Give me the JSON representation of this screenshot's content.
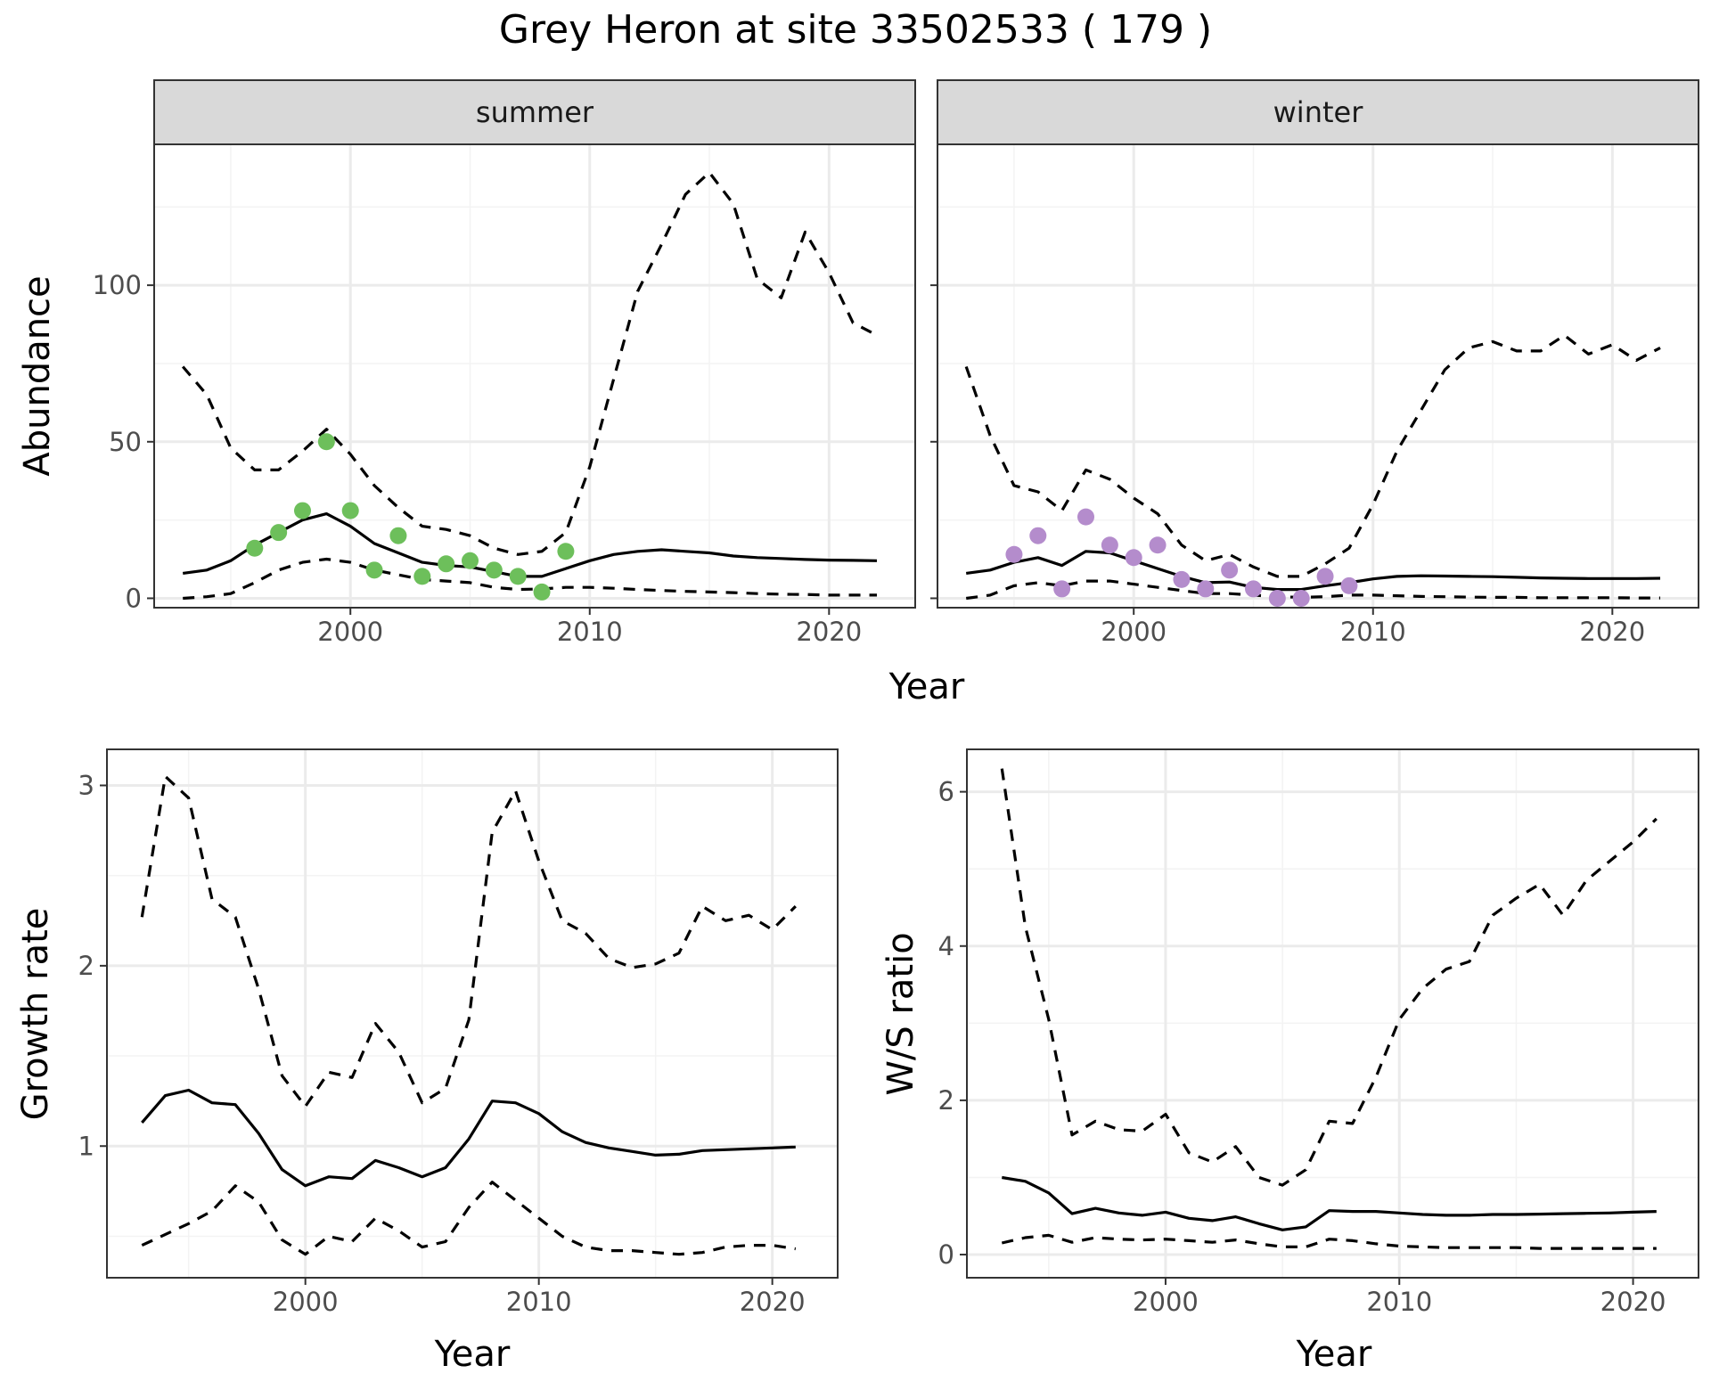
{
  "title": "Grey Heron at site 33502533 ( 179 )",
  "colors": {
    "summer_points": "#6dbf5b",
    "winter_points": "#b48ccc",
    "line": "#000000",
    "grid_major": "#ebebeb",
    "grid_minor": "#f3f3f3",
    "strip_bg": "#d9d9d9",
    "panel_border": "#333333"
  },
  "chart_data": [
    {
      "type": "line",
      "facet": "summer",
      "xlabel": "Year",
      "ylabel": "Abundance",
      "xlim": [
        1991.8,
        2023.6
      ],
      "ylim": [
        -3,
        145
      ],
      "x_ticks": [
        2000,
        2010,
        2020
      ],
      "y_ticks": [
        0,
        50,
        100
      ],
      "grid": true,
      "series": [
        {
          "role": "estimate",
          "style": "solid",
          "x": [
            1993,
            1994,
            1995,
            1996,
            1997,
            1998,
            1999,
            2000,
            2001,
            2002,
            2003,
            2004,
            2005,
            2006,
            2007,
            2008,
            2009,
            2010,
            2011,
            2012,
            2013,
            2014,
            2015,
            2016,
            2017,
            2018,
            2019,
            2020,
            2021,
            2022
          ],
          "y": [
            8,
            9,
            12,
            17,
            21,
            25,
            27,
            23,
            17.5,
            14.5,
            11.5,
            10.5,
            10,
            8.5,
            7,
            7,
            9.5,
            12,
            14,
            15,
            15.5,
            15,
            14.5,
            13.5,
            13,
            12.7,
            12.4,
            12.2,
            12.1,
            12
          ]
        },
        {
          "role": "upper",
          "style": "dashed",
          "x": [
            1993,
            1994,
            1995,
            1996,
            1997,
            1998,
            1999,
            2000,
            2001,
            2002,
            2003,
            2004,
            2005,
            2006,
            2007,
            2008,
            2009,
            2010,
            2011,
            2012,
            2013,
            2014,
            2015,
            2016,
            2017,
            2018,
            2019,
            2020,
            2021,
            2022
          ],
          "y": [
            74,
            65,
            48,
            41,
            41,
            47,
            54,
            46,
            36,
            29,
            23,
            22,
            20,
            16,
            14,
            15,
            21,
            42,
            70,
            98,
            113,
            129,
            136,
            126,
            102,
            96,
            117,
            104,
            88,
            84
          ]
        },
        {
          "role": "lower",
          "style": "dashed",
          "x": [
            1993,
            1994,
            1995,
            1996,
            1997,
            1998,
            1999,
            2000,
            2001,
            2002,
            2003,
            2004,
            2005,
            2006,
            2007,
            2008,
            2009,
            2010,
            2011,
            2012,
            2013,
            2014,
            2015,
            2016,
            2017,
            2018,
            2019,
            2020,
            2021,
            2022
          ],
          "y": [
            0,
            0.5,
            1.5,
            5,
            9,
            11.5,
            12.5,
            11.5,
            9,
            7.5,
            6,
            5.5,
            5,
            3.5,
            2.8,
            3,
            3.5,
            3.5,
            3.2,
            2.8,
            2.5,
            2.2,
            2,
            1.8,
            1.5,
            1.3,
            1.2,
            1,
            1,
            1
          ]
        },
        {
          "role": "observed",
          "style": "points",
          "x": [
            1996,
            1997,
            1998,
            1999,
            2000,
            2001,
            2002,
            2003,
            2004,
            2005,
            2006,
            2007,
            2008,
            2009
          ],
          "y": [
            16,
            21,
            28,
            50,
            28,
            9,
            20,
            7,
            11,
            12,
            9,
            7,
            2,
            15
          ]
        }
      ]
    },
    {
      "type": "line",
      "facet": "winter",
      "xlabel": "Year",
      "ylabel": "Abundance",
      "xlim": [
        1991.8,
        2023.6
      ],
      "ylim": [
        -3,
        145
      ],
      "x_ticks": [
        2000,
        2010,
        2020
      ],
      "y_ticks": [
        0,
        50,
        100
      ],
      "grid": true,
      "series": [
        {
          "role": "estimate",
          "style": "solid",
          "x": [
            1993,
            1994,
            1995,
            1996,
            1997,
            1998,
            1999,
            2000,
            2001,
            2002,
            2003,
            2004,
            2005,
            2006,
            2007,
            2008,
            2009,
            2010,
            2011,
            2012,
            2013,
            2014,
            2015,
            2016,
            2017,
            2018,
            2019,
            2020,
            2021,
            2022
          ],
          "y": [
            8,
            9,
            11.5,
            13,
            10.5,
            15,
            14.5,
            12,
            9.5,
            7,
            5,
            5.2,
            3.5,
            2.8,
            2.8,
            4,
            5,
            6.2,
            7,
            7.2,
            7.1,
            7,
            6.9,
            6.7,
            6.5,
            6.4,
            6.3,
            6.3,
            6.3,
            6.4
          ]
        },
        {
          "role": "upper",
          "style": "dashed",
          "x": [
            1993,
            1994,
            1995,
            1996,
            1997,
            1998,
            1999,
            2000,
            2001,
            2002,
            2003,
            2004,
            2005,
            2006,
            2007,
            2008,
            2009,
            2010,
            2011,
            2012,
            2013,
            2014,
            2015,
            2016,
            2017,
            2018,
            2019,
            2020,
            2021,
            2022
          ],
          "y": [
            74,
            52,
            36,
            34,
            28,
            41,
            38,
            32,
            27,
            17,
            12,
            14,
            10,
            7,
            7,
            11,
            16,
            30,
            47,
            60,
            73,
            80,
            82,
            79,
            79,
            84,
            78,
            81,
            76,
            80
          ]
        },
        {
          "role": "lower",
          "style": "dashed",
          "x": [
            1993,
            1994,
            1995,
            1996,
            1997,
            1998,
            1999,
            2000,
            2001,
            2002,
            2003,
            2004,
            2005,
            2006,
            2007,
            2008,
            2009,
            2010,
            2011,
            2012,
            2013,
            2014,
            2015,
            2016,
            2017,
            2018,
            2019,
            2020,
            2021,
            2022
          ],
          "y": [
            0,
            1,
            4,
            5,
            4,
            5.5,
            5.5,
            4.5,
            3.5,
            2.5,
            1.5,
            1.5,
            1,
            0.5,
            0.3,
            0.5,
            1,
            1,
            0.8,
            0.6,
            0.5,
            0.4,
            0.3,
            0.3,
            0.2,
            0.2,
            0.2,
            0.2,
            0.1,
            0.1
          ]
        },
        {
          "role": "observed",
          "style": "points",
          "x": [
            1995,
            1996,
            1997,
            1998,
            1999,
            2000,
            2001,
            2002,
            2003,
            2004,
            2005,
            2006,
            2007,
            2008,
            2009
          ],
          "y": [
            14,
            20,
            3,
            26,
            17,
            13,
            17,
            6,
            3,
            9,
            3,
            0,
            0,
            7,
            4
          ]
        }
      ]
    },
    {
      "type": "line",
      "xlabel": "Year",
      "ylabel": "Growth rate",
      "xlim": [
        1991.5,
        2022.8
      ],
      "ylim": [
        0.27,
        3.2
      ],
      "x_ticks": [
        2000,
        2010,
        2020
      ],
      "y_ticks": [
        1,
        2,
        3
      ],
      "grid": true,
      "series": [
        {
          "role": "estimate",
          "style": "solid",
          "x": [
            1993,
            1994,
            1995,
            1996,
            1997,
            1998,
            1999,
            2000,
            2001,
            2002,
            2003,
            2004,
            2005,
            2006,
            2007,
            2008,
            2009,
            2010,
            2011,
            2012,
            2013,
            2014,
            2015,
            2016,
            2017,
            2018,
            2019,
            2020,
            2021
          ],
          "y": [
            1.13,
            1.28,
            1.31,
            1.24,
            1.23,
            1.07,
            0.87,
            0.78,
            0.83,
            0.82,
            0.92,
            0.88,
            0.83,
            0.88,
            1.04,
            1.25,
            1.24,
            1.18,
            1.08,
            1.02,
            0.99,
            0.97,
            0.95,
            0.955,
            0.975,
            0.98,
            0.985,
            0.99,
            0.995
          ]
        },
        {
          "role": "upper",
          "style": "dashed",
          "x": [
            1993,
            1994,
            1995,
            1996,
            1997,
            1998,
            1999,
            2000,
            2001,
            2002,
            2003,
            2004,
            2005,
            2006,
            2007,
            2008,
            2009,
            2010,
            2011,
            2012,
            2013,
            2014,
            2015,
            2016,
            2017,
            2018,
            2019,
            2020,
            2021
          ],
          "y": [
            2.27,
            3.05,
            2.93,
            2.37,
            2.27,
            1.87,
            1.39,
            1.22,
            1.41,
            1.38,
            1.68,
            1.52,
            1.24,
            1.32,
            1.7,
            2.74,
            2.97,
            2.58,
            2.25,
            2.18,
            2.04,
            1.99,
            2.01,
            2.07,
            2.33,
            2.25,
            2.28,
            2.2,
            2.33
          ]
        },
        {
          "role": "lower",
          "style": "dashed",
          "x": [
            1993,
            1994,
            1995,
            1996,
            1997,
            1998,
            1999,
            2000,
            2001,
            2002,
            2003,
            2004,
            2005,
            2006,
            2007,
            2008,
            2009,
            2010,
            2011,
            2012,
            2013,
            2014,
            2015,
            2016,
            2017,
            2018,
            2019,
            2020,
            2021
          ],
          "y": [
            0.45,
            0.51,
            0.57,
            0.64,
            0.78,
            0.69,
            0.48,
            0.4,
            0.5,
            0.47,
            0.6,
            0.53,
            0.44,
            0.47,
            0.66,
            0.8,
            0.7,
            0.6,
            0.5,
            0.44,
            0.42,
            0.42,
            0.41,
            0.4,
            0.41,
            0.44,
            0.45,
            0.45,
            0.43
          ]
        }
      ]
    },
    {
      "type": "line",
      "xlabel": "Year",
      "ylabel": "W/S ratio",
      "xlim": [
        1991.5,
        2022.8
      ],
      "ylim": [
        -0.3,
        6.55
      ],
      "x_ticks": [
        2000,
        2010,
        2020
      ],
      "y_ticks": [
        0,
        2,
        4,
        6
      ],
      "grid": true,
      "series": [
        {
          "role": "estimate",
          "style": "solid",
          "x": [
            1993,
            1994,
            1995,
            1996,
            1997,
            1998,
            1999,
            2000,
            2001,
            2002,
            2003,
            2004,
            2005,
            2006,
            2007,
            2008,
            2009,
            2010,
            2011,
            2012,
            2013,
            2014,
            2015,
            2016,
            2017,
            2018,
            2019,
            2020,
            2021
          ],
          "y": [
            1.0,
            0.95,
            0.8,
            0.53,
            0.6,
            0.54,
            0.51,
            0.55,
            0.47,
            0.44,
            0.49,
            0.4,
            0.32,
            0.36,
            0.57,
            0.56,
            0.56,
            0.54,
            0.52,
            0.51,
            0.51,
            0.52,
            0.52,
            0.525,
            0.53,
            0.535,
            0.54,
            0.55,
            0.56
          ]
        },
        {
          "role": "upper",
          "style": "dashed",
          "x": [
            1993,
            1994,
            1995,
            1996,
            1997,
            1998,
            1999,
            2000,
            2001,
            2002,
            2003,
            2004,
            2005,
            2006,
            2007,
            2008,
            2009,
            2010,
            2011,
            2012,
            2013,
            2014,
            2015,
            2016,
            2017,
            2018,
            2019,
            2020,
            2021
          ],
          "y": [
            6.3,
            4.25,
            3.05,
            1.55,
            1.73,
            1.62,
            1.6,
            1.82,
            1.32,
            1.2,
            1.4,
            1.0,
            0.9,
            1.1,
            1.73,
            1.7,
            2.3,
            3.05,
            3.45,
            3.7,
            3.8,
            4.4,
            4.62,
            4.8,
            4.4,
            4.85,
            5.1,
            5.35,
            5.65
          ]
        },
        {
          "role": "lower",
          "style": "dashed",
          "x": [
            1993,
            1994,
            1995,
            1996,
            1997,
            1998,
            1999,
            2000,
            2001,
            2002,
            2003,
            2004,
            2005,
            2006,
            2007,
            2008,
            2009,
            2010,
            2011,
            2012,
            2013,
            2014,
            2015,
            2016,
            2017,
            2018,
            2019,
            2020,
            2021
          ],
          "y": [
            0.15,
            0.22,
            0.25,
            0.16,
            0.22,
            0.2,
            0.19,
            0.2,
            0.18,
            0.16,
            0.19,
            0.14,
            0.1,
            0.1,
            0.2,
            0.18,
            0.14,
            0.11,
            0.1,
            0.09,
            0.09,
            0.09,
            0.09,
            0.08,
            0.08,
            0.08,
            0.08,
            0.08,
            0.08
          ]
        }
      ]
    }
  ]
}
